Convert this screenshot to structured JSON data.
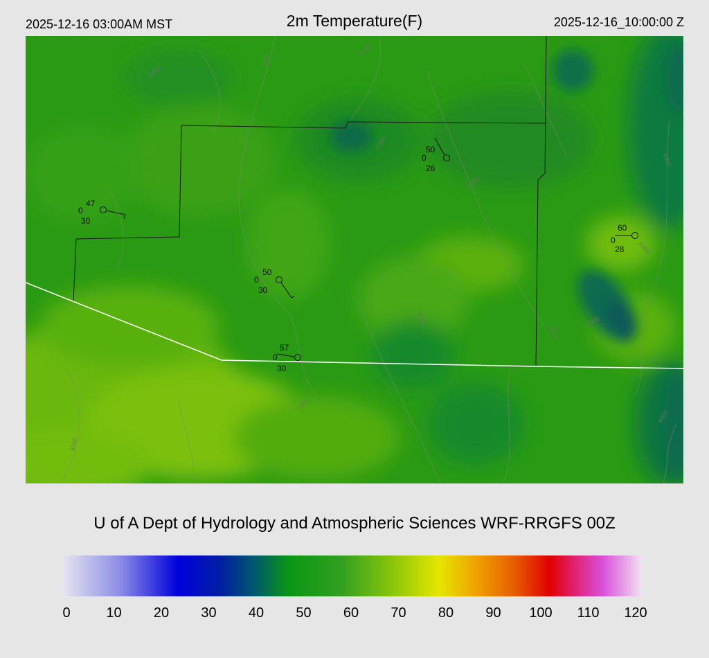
{
  "header": {
    "local_time": "2025-12-16 03:00AM MST",
    "title": "2m Temperature(F)",
    "utc_time": "2025-12-16_10:00:00 Z"
  },
  "footer": {
    "title": "U of A Dept of Hydrology and Atmospheric Sciences WRF-RRGFS 00Z"
  },
  "colorbar": {
    "min": 0,
    "max": 120,
    "ticks": [
      "0",
      "10",
      "20",
      "30",
      "40",
      "50",
      "60",
      "70",
      "80",
      "90",
      "100",
      "110",
      "120"
    ],
    "stops": [
      {
        "value": 0,
        "color": "#e6e6f0"
      },
      {
        "value": 12,
        "color": "#8c8ce6"
      },
      {
        "value": 24,
        "color": "#0000dc"
      },
      {
        "value": 33,
        "color": "#0020a0"
      },
      {
        "value": 40,
        "color": "#005a6a"
      },
      {
        "value": 47,
        "color": "#0a9614"
      },
      {
        "value": 58,
        "color": "#33a020"
      },
      {
        "value": 68,
        "color": "#86c40a"
      },
      {
        "value": 78,
        "color": "#e6e600"
      },
      {
        "value": 86,
        "color": "#f0a000"
      },
      {
        "value": 94,
        "color": "#e65a00"
      },
      {
        "value": 101,
        "color": "#e00000"
      },
      {
        "value": 106,
        "color": "#e0206e"
      },
      {
        "value": 112,
        "color": "#d850d8"
      },
      {
        "value": 120,
        "color": "#f0e0f0"
      }
    ]
  },
  "map": {
    "base_color": "#2a9a14",
    "station_plots": [
      {
        "temp": "47",
        "left": "0",
        "dew": "30"
      },
      {
        "temp": "50",
        "left": "0",
        "dew": "26"
      },
      {
        "temp": "60",
        "left": "0",
        "dew": "28"
      },
      {
        "temp": "50",
        "left": "0",
        "dew": "30"
      },
      {
        "temp": "57",
        "left": "0",
        "dew": "30"
      }
    ],
    "contour_labels": [
      "3000",
      "4000",
      "5000",
      "6000",
      "4000",
      "5000",
      "4000",
      "6000",
      "5000",
      "4000",
      "3000",
      "6000",
      "4000"
    ]
  }
}
